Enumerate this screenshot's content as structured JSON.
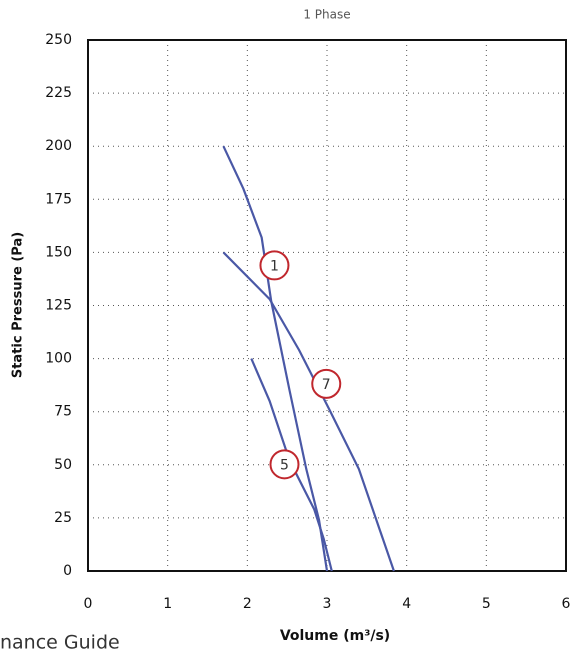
{
  "chart_data": {
    "type": "line",
    "title": "1 Phase",
    "x_label": "Volume (m³/s)",
    "y_label": "Static Pressure (Pa)",
    "xlim": [
      0,
      6
    ],
    "xticks": [
      0,
      1,
      2,
      3,
      4,
      5,
      6
    ],
    "ylim": [
      0,
      250
    ],
    "yticks": [
      0,
      25,
      50,
      75,
      100,
      125,
      150,
      175,
      200,
      225,
      250
    ],
    "grid": true,
    "line_color": "#4a58a6",
    "label_color": "#c0272d",
    "series": [
      {
        "name": "1",
        "x": [
          1.7,
          1.95,
          2.18,
          2.3,
          2.53,
          2.74,
          2.9,
          3.0
        ],
        "values": [
          200,
          180,
          157,
          127,
          85,
          48,
          24,
          0
        ]
      },
      {
        "name": "7",
        "x": [
          1.7,
          2.28,
          2.65,
          3.03,
          3.4,
          3.84
        ],
        "values": [
          150,
          128,
          104,
          76,
          48,
          0
        ]
      },
      {
        "name": "5",
        "x": [
          2.05,
          2.28,
          2.53,
          2.84,
          2.96,
          3.06
        ],
        "values": [
          100,
          80,
          52,
          29,
          15,
          0
        ]
      }
    ]
  },
  "footer_text": "nance Guide"
}
